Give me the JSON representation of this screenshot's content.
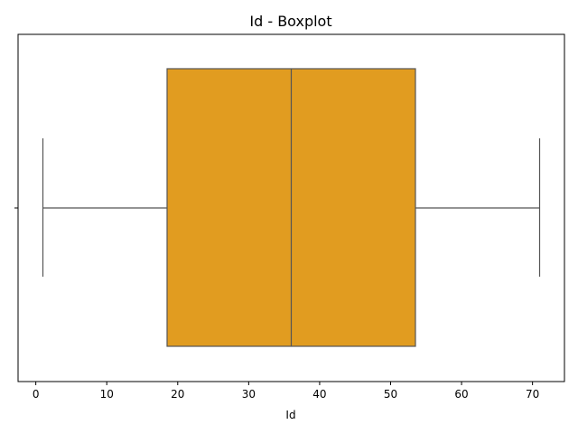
{
  "chart_data": {
    "type": "boxplot",
    "title": "Id - Boxplot",
    "xlabel": "Id",
    "ylabel": "",
    "orientation": "horizontal",
    "xlim": [
      -2.5,
      74.5
    ],
    "xticks": [
      0,
      10,
      20,
      30,
      40,
      50,
      60,
      70
    ],
    "box": {
      "whisker_low": 1,
      "q1": 18.5,
      "median": 36,
      "q3": 53.5,
      "whisker_high": 71
    },
    "grid": false,
    "legend": "none"
  },
  "colors": {
    "box_fill": "#e19c20",
    "line": "#555555",
    "axis": "#000000"
  }
}
